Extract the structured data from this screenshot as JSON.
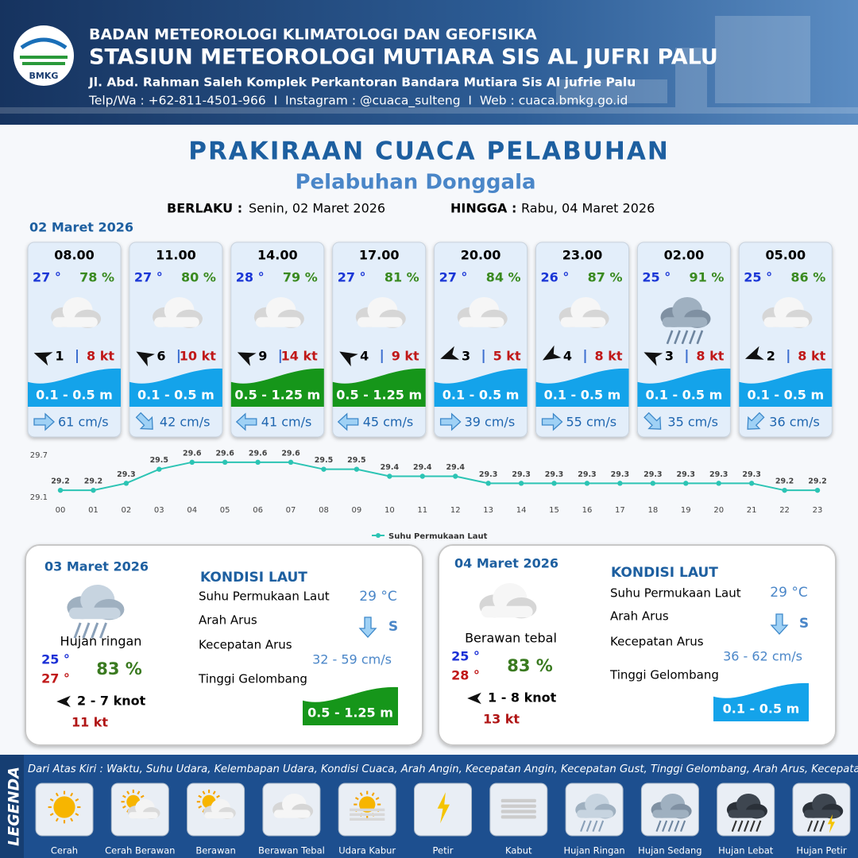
{
  "header": {
    "logo": "BMKG",
    "agency": "BADAN METEOROLOGI KLIMATOLOGI DAN GEOFISIKA",
    "station": "STASIUN METEOROLOGI MUTIARA SIS AL JUFRI PALU",
    "address": "Jl. Abd. Rahman Saleh Komplek Perkantoran Bandara Mutiara Sis Al jufrie Palu",
    "contact": "Telp/Wa : +62-811-4501-966  I  Instagram : @cuaca_sulteng  I  Web : cuaca.bmkg.go.id"
  },
  "title": "PRAKIRAAN CUACA PELABUHAN",
  "subtitle": "Pelabuhan Donggala",
  "validity": {
    "from_label": "BERLAKU :",
    "from": "Senin, 02 Maret 2026",
    "to_label": "HINGGA :",
    "to": "Rabu, 04 Maret 2026"
  },
  "day1": "02 Maret 2026",
  "cards": [
    {
      "time": "08.00",
      "temp": "27 °",
      "humidity": "78 %",
      "wind": "1",
      "gust": "8 kt",
      "wave": "0.1 - 0.5 m",
      "wave_color": "#14a3ea",
      "current": "61 cm/s"
    },
    {
      "time": "11.00",
      "temp": "27 °",
      "humidity": "80 %",
      "wind": "6",
      "gust": "10 kt",
      "wave": "0.1 - 0.5 m",
      "wave_color": "#14a3ea",
      "current": "42 cm/s"
    },
    {
      "time": "14.00",
      "temp": "28 °",
      "humidity": "79 %",
      "wind": "9",
      "gust": "14 kt",
      "wave": "0.5 - 1.25 m",
      "wave_color": "#16961a",
      "current": "41 cm/s"
    },
    {
      "time": "17.00",
      "temp": "27 °",
      "humidity": "81 %",
      "wind": "4",
      "gust": "9 kt",
      "wave": "0.5 - 1.25 m",
      "wave_color": "#16961a",
      "current": "45 cm/s"
    },
    {
      "time": "20.00",
      "temp": "27 °",
      "humidity": "84 %",
      "wind": "3",
      "gust": "5 kt",
      "wave": "0.1 - 0.5 m",
      "wave_color": "#14a3ea",
      "current": "39 cm/s"
    },
    {
      "time": "23.00",
      "temp": "26 °",
      "humidity": "87 %",
      "wind": "4",
      "gust": "8 kt",
      "wave": "0.1 - 0.5 m",
      "wave_color": "#14a3ea",
      "current": "55 cm/s"
    },
    {
      "time": "02.00",
      "temp": "25 °",
      "humidity": "91 %",
      "wind": "3",
      "gust": "8 kt",
      "wave": "0.1 - 0.5 m",
      "wave_color": "#14a3ea",
      "current": "35 cm/s"
    },
    {
      "time": "05.00",
      "temp": "25 °",
      "humidity": "86 %",
      "wind": "2",
      "gust": "8 kt",
      "wave": "0.1 - 0.5 m",
      "wave_color": "#14a3ea",
      "current": "36 cm/s"
    }
  ],
  "chart_data": {
    "type": "line",
    "categories": [
      "00",
      "01",
      "02",
      "03",
      "04",
      "05",
      "06",
      "07",
      "08",
      "09",
      "10",
      "11",
      "12",
      "13",
      "14",
      "15",
      "16",
      "17",
      "18",
      "19",
      "20",
      "21",
      "22",
      "23"
    ],
    "series": [
      {
        "name": "Suhu Permukaan Laut",
        "color": "#2cc4b4",
        "values": [
          29.2,
          29.2,
          29.3,
          29.5,
          29.6,
          29.6,
          29.6,
          29.6,
          29.5,
          29.5,
          29.4,
          29.4,
          29.4,
          29.3,
          29.3,
          29.3,
          29.3,
          29.3,
          29.3,
          29.3,
          29.3,
          29.3,
          29.2,
          29.2
        ]
      }
    ],
    "ylim": [
      29.1,
      29.7
    ],
    "yticks": [
      29.1,
      29.7
    ]
  },
  "days": [
    {
      "date": "03 Maret 2026",
      "condition": "Hujan ringan",
      "tmin": "25 °",
      "tmax": "27 °",
      "humidity": "83 %",
      "wind": "2 - 7 knot",
      "gust": "11 kt",
      "sea_title": "KONDISI LAUT",
      "sst_label": "Suhu Permukaan Laut",
      "sst": "29 °C",
      "dir_label": "Arah Arus",
      "dir": "S",
      "speed_label": "Kecepatan Arus",
      "speed": "32 - 59 cm/s",
      "wave_label": "Tinggi Gelombang",
      "wave": "0.5 - 1.25 m",
      "wave_color": "#16961a"
    },
    {
      "date": "04 Maret 2026",
      "condition": "Berawan tebal",
      "tmin": "25 °",
      "tmax": "28 °",
      "humidity": "83 %",
      "wind": "1 - 8 knot",
      "gust": "13 kt",
      "sea_title": "KONDISI LAUT",
      "sst_label": "Suhu Permukaan Laut",
      "sst": "29 °C",
      "dir_label": "Arah Arus",
      "dir": "S",
      "speed_label": "Kecepatan Arus",
      "speed": "36 - 62 cm/s",
      "wave_label": "Tinggi Gelombang",
      "wave": "0.1 - 0.5 m",
      "wave_color": "#14a3ea"
    }
  ],
  "legend": {
    "title": "LEGENDA",
    "note": "Dari Atas Kiri : Waktu, Suhu Udara, Kelembapan Udara, Kondisi Cuaca, Arah Angin, Kecepatan Angin, Kecepatan Gust, Tinggi Gelombang, Arah Arus, Kecepatan Arus",
    "items": [
      "Cerah",
      "Cerah Berawan",
      "Berawan",
      "Berawan Tebal",
      "Udara Kabur",
      "Petir",
      "Kabut",
      "Hujan Ringan",
      "Hujan Sedang",
      "Hujan Lebat",
      "Hujan Petir"
    ]
  }
}
